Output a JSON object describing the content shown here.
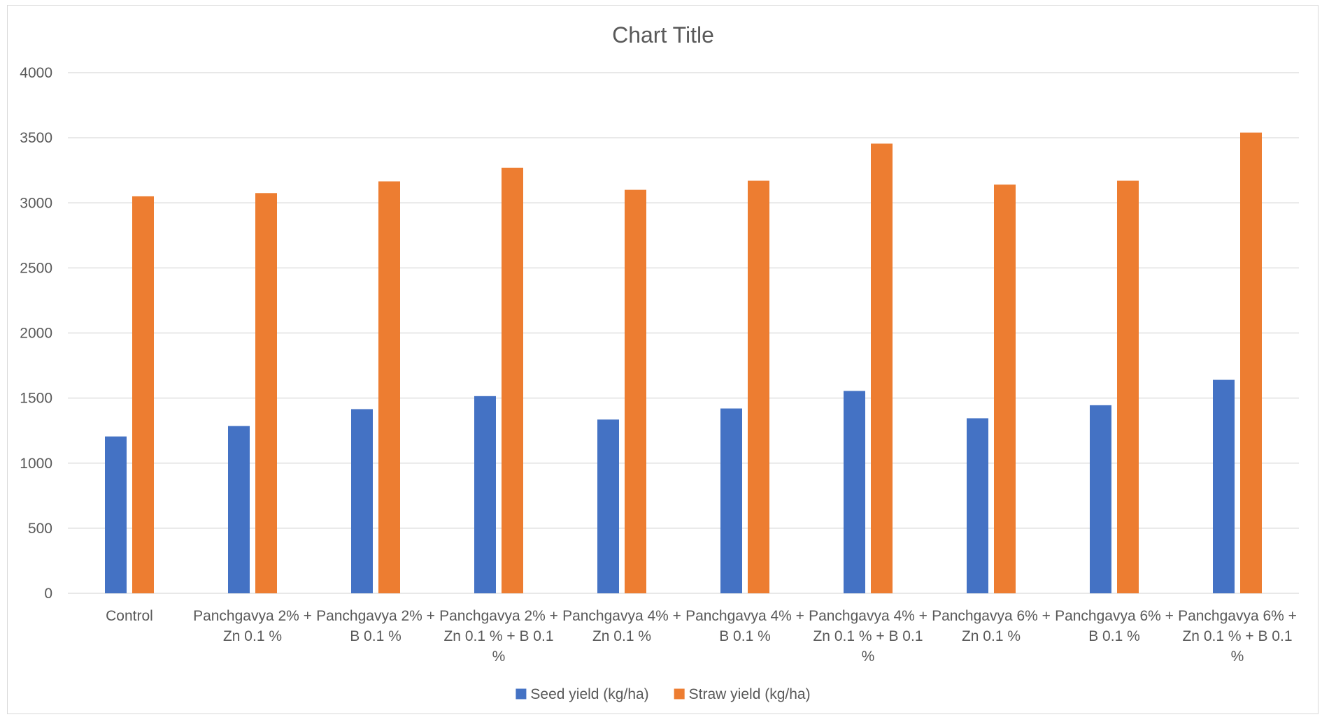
{
  "chart_data": {
    "type": "bar",
    "title": "Chart Title",
    "xlabel": "",
    "ylabel": "",
    "ylim": [
      0,
      4000
    ],
    "yticks": [
      0,
      500,
      1000,
      1500,
      2000,
      2500,
      3000,
      3500,
      4000
    ],
    "grid": true,
    "legend_position": "bottom",
    "categories": [
      "Control",
      "Panchgavya 2% + Zn 0.1 %",
      "Panchgavya 2% + B 0.1 %",
      "Panchgavya 2% + Zn 0.1 % + B 0.1 %",
      "Panchgavya 4% + Zn 0.1 %",
      "Panchgavya 4% + B 0.1 %",
      "Panchgavya 4% + Zn 0.1 % + B 0.1 %",
      "Panchgavya 6% + Zn 0.1 %",
      "Panchgavya 6% + B 0.1 %",
      "Panchgavya 6% + Zn 0.1 % + B 0.1 %"
    ],
    "series": [
      {
        "name": "Seed yield (kg/ha)",
        "color": "#4472C4",
        "values": [
          1205,
          1285,
          1415,
          1515,
          1335,
          1420,
          1555,
          1345,
          1445,
          1640
        ]
      },
      {
        "name": "Straw yield (kg/ha)",
        "color": "#ED7D31",
        "values": [
          3050,
          3075,
          3165,
          3270,
          3100,
          3170,
          3455,
          3140,
          3170,
          3540
        ]
      }
    ]
  },
  "style": {
    "grid_color": "#d9d9d9",
    "axis_color": "#d9d9d9",
    "text_color": "#595959"
  }
}
